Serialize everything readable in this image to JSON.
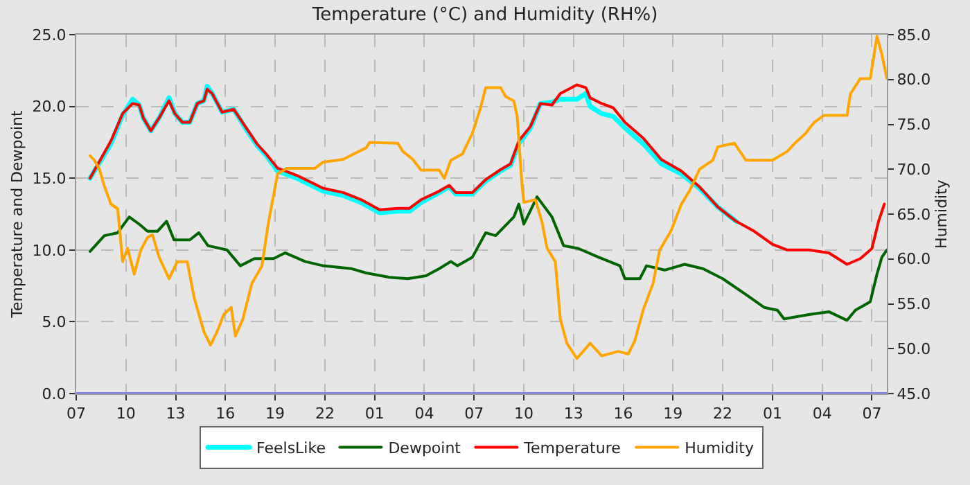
{
  "chart_data": {
    "type": "line",
    "title": "Temperature (°C) and Humidity (RH%)",
    "ylabel": "Temperature and Dewpoint",
    "y2label": "Humidity",
    "xlim": [
      "--01-01T07:00",
      "--01-03T07:54"
    ],
    "xticks": [
      {
        "value": "--01-01T07:00",
        "label": "07"
      },
      {
        "value": "--01-01T10:00",
        "label": "10"
      },
      {
        "value": "--01-01T13:00",
        "label": "13"
      },
      {
        "value": "--01-01T16:00",
        "label": "16"
      },
      {
        "value": "--01-01T19:00",
        "label": "19"
      },
      {
        "value": "--01-01T22:00",
        "label": "22"
      },
      {
        "value": "--01-02T01:00",
        "label": "01"
      },
      {
        "value": "--01-02T04:00",
        "label": "04"
      },
      {
        "value": "--01-02T07:00",
        "label": "07"
      },
      {
        "value": "--01-02T10:00",
        "label": "10"
      },
      {
        "value": "--01-02T13:00",
        "label": "13"
      },
      {
        "value": "--01-02T16:00",
        "label": "16"
      },
      {
        "value": "--01-02T19:00",
        "label": "19"
      },
      {
        "value": "--01-02T22:00",
        "label": "22"
      },
      {
        "value": "--01-03T01:00",
        "label": "01"
      },
      {
        "value": "--01-03T04:00",
        "label": "04"
      },
      {
        "value": "--01-03T07:00",
        "label": "07"
      }
    ],
    "ylim": [
      0,
      25
    ],
    "yticks": [
      {
        "value": 0,
        "label": "0.0"
      },
      {
        "value": 5,
        "label": "5.0"
      },
      {
        "value": 10,
        "label": "10.0"
      },
      {
        "value": 15,
        "label": "15.0"
      },
      {
        "value": 20,
        "label": "20.0"
      },
      {
        "value": 25,
        "label": "25.0"
      }
    ],
    "y2lim": [
      45,
      85
    ],
    "y2ticks": [
      {
        "value": 45,
        "label": "45.0"
      },
      {
        "value": 50,
        "label": "50.0"
      },
      {
        "value": 55,
        "label": "55.0"
      },
      {
        "value": 60,
        "label": "60.0"
      },
      {
        "value": 65,
        "label": "65.0"
      },
      {
        "value": 70,
        "label": "70.0"
      },
      {
        "value": 75,
        "label": "75.0"
      },
      {
        "value": 80,
        "label": "80.0"
      },
      {
        "value": 85,
        "label": "85.0"
      }
    ],
    "grid": true,
    "legend": "bottom",
    "line_style": "solid",
    "ref_lines": [
      {
        "axis": "y",
        "value": 0,
        "color": "#8080ff"
      }
    ],
    "x": [
      "--01-01T07:50",
      "--01-01T09:06",
      "--01-01T09:48",
      "--01-01T10:24",
      "--01-01T10:48",
      "--01-01T11:03",
      "--01-01T11:30",
      "--01-01T12:00",
      "--01-01T12:36",
      "--01-01T12:57",
      "--01-01T13:24",
      "--01-01T13:51",
      "--01-01T14:18",
      "--01-01T14:42",
      "--01-01T14:54",
      "--01-01T15:12",
      "--01-01T15:48",
      "--01-01T16:30",
      "--01-01T17:12",
      "--01-01T17:54",
      "--01-01T18:27",
      "--01-01T19:09",
      "--01-01T20:18",
      "--01-01T21:54",
      "--01-01T23:06",
      "--01-02T00:12",
      "--01-02T01:18",
      "--01-02T02:24",
      "--01-02T03:06",
      "--01-02T03:48",
      "--01-02T04:54",
      "--01-02T05:30",
      "--01-02T05:54",
      "--01-02T06:54",
      "--01-02T07:42",
      "--01-02T08:36",
      "--01-02T09:12",
      "--01-02T09:42",
      "--01-02T10:24",
      "--01-02T11:00",
      "--01-02T11:42",
      "--01-02T12:12",
      "--01-02T13:12",
      "--01-02T13:45",
      "--01-02T14:00",
      "--01-02T14:42",
      "--01-02T15:24",
      "--01-02T16:06",
      "--01-02T17:12",
      "--01-02T18:18",
      "--01-02T19:30",
      "--01-02T20:36",
      "--01-02T21:42",
      "--01-02T22:48",
      "--01-02T23:54",
      "--01-03T01:00",
      "--01-03T01:54",
      "--01-03T03:12",
      "--01-03T04:24",
      "--01-03T05:30",
      "--01-03T06:18",
      "--01-03T07:00",
      "--01-03T07:24",
      "--01-03T07:45"
    ],
    "series": [
      {
        "name": "FeelsLike",
        "color": "#00ffff",
        "values": [
          15.0,
          17.4,
          19.4,
          20.5,
          20.1,
          19.2,
          18.3,
          19.2,
          20.6,
          19.5,
          18.9,
          18.9,
          20.2,
          20.4,
          21.4,
          20.9,
          19.6,
          19.8,
          18.5,
          17.3,
          16.6,
          15.5,
          15.0,
          14.1,
          13.8,
          13.3,
          12.6,
          12.7,
          12.7,
          13.3,
          14.0,
          14.4,
          13.9,
          13.9,
          14.8,
          15.5,
          15.9,
          17.4,
          18.5,
          20.2,
          20.3,
          20.5,
          20.5,
          20.9,
          20.0,
          19.5,
          19.3,
          18.5,
          17.4,
          16.0,
          15.3,
          14.3,
          13.0,
          12.0,
          null,
          null,
          null,
          null,
          null,
          null,
          null,
          null,
          null,
          null
        ]
      },
      {
        "name": "Dewpoint",
        "color": "#006400",
        "x": [
          "--01-01T07:50",
          "--01-01T08:42",
          "--01-01T09:30",
          "--01-01T10:12",
          "--01-01T10:48",
          "--01-01T11:18",
          "--01-01T11:54",
          "--01-01T12:27",
          "--01-01T12:54",
          "--01-01T13:51",
          "--01-01T14:24",
          "--01-01T14:57",
          "--01-01T16:06",
          "--01-01T16:54",
          "--01-01T17:45",
          "--01-01T18:54",
          "--01-01T19:36",
          "--01-01T20:48",
          "--01-01T21:54",
          "--01-01T23:36",
          "--01-02T00:30",
          "--01-02T01:54",
          "--01-02T03:00",
          "--01-02T04:06",
          "--01-02T04:54",
          "--01-02T05:36",
          "--01-02T06:00",
          "--01-02T06:54",
          "--01-02T07:42",
          "--01-02T08:18",
          "--01-02T09:24",
          "--01-02T09:42",
          "--01-02T10:00",
          "--01-02T10:48",
          "--01-02T11:42",
          "--01-02T12:24",
          "--01-02T13:18",
          "--01-02T14:30",
          "--01-02T15:48",
          "--01-02T16:06",
          "--01-02T17:00",
          "--01-02T17:24",
          "--01-02T18:30",
          "--01-02T19:42",
          "--01-02T20:48",
          "--01-02T22:00",
          "--01-02T23:24",
          "--01-03T00:30",
          "--01-03T01:18",
          "--01-03T01:42",
          "--01-03T03:12",
          "--01-03T04:24",
          "--01-03T05:30",
          "--01-03T06:00",
          "--01-03T06:54",
          "--01-03T07:18",
          "--01-03T07:36",
          "--01-03T07:54"
        ],
        "values": [
          9.9,
          11.0,
          11.2,
          12.3,
          11.8,
          11.3,
          11.3,
          12.0,
          10.7,
          10.7,
          11.2,
          10.3,
          10.0,
          8.9,
          9.4,
          9.4,
          9.8,
          9.2,
          8.9,
          8.7,
          8.4,
          8.1,
          8.0,
          8.2,
          8.7,
          9.2,
          8.9,
          9.5,
          11.2,
          11.0,
          12.3,
          13.2,
          11.8,
          13.7,
          12.3,
          10.3,
          10.1,
          9.5,
          8.9,
          8.0,
          8.0,
          8.9,
          8.6,
          9.0,
          8.7,
          8.0,
          6.9,
          6.0,
          5.8,
          5.2,
          5.5,
          5.7,
          5.1,
          5.8,
          6.4,
          8.3,
          9.5,
          10.0
        ]
      },
      {
        "name": "Temperature",
        "color": "#ff0000",
        "values": [
          15.0,
          17.6,
          19.5,
          20.2,
          20.1,
          19.2,
          18.3,
          19.2,
          20.4,
          19.5,
          18.9,
          18.9,
          20.2,
          20.4,
          21.2,
          20.9,
          19.6,
          19.8,
          18.6,
          17.4,
          16.7,
          15.7,
          15.2,
          14.3,
          14.0,
          13.5,
          12.8,
          12.9,
          12.9,
          13.5,
          14.1,
          14.5,
          14.0,
          14.0,
          14.9,
          15.6,
          16.0,
          17.6,
          18.6,
          20.2,
          20.1,
          20.9,
          21.5,
          21.3,
          20.6,
          20.2,
          19.9,
          18.9,
          17.8,
          16.3,
          15.5,
          14.4,
          13.0,
          12.0,
          11.3,
          10.4,
          10.0,
          10.0,
          9.8,
          9.0,
          9.4,
          10.1,
          12.0,
          13.2
        ]
      },
      {
        "name": "Humidity",
        "color": "#ffa500",
        "axis": "y2",
        "x": [
          "--01-01T07:50",
          "--01-01T08:06",
          "--01-01T08:24",
          "--01-01T08:42",
          "--01-01T09:06",
          "--01-01T09:30",
          "--01-01T09:48",
          "--01-01T10:06",
          "--01-01T10:30",
          "--01-01T10:54",
          "--01-01T11:18",
          "--01-01T11:36",
          "--01-01T12:00",
          "--01-01T12:36",
          "--01-01T13:06",
          "--01-01T13:42",
          "--01-01T14:06",
          "--01-01T14:42",
          "--01-01T15:06",
          "--01-01T15:30",
          "--01-01T15:54",
          "--01-01T16:21",
          "--01-01T16:36",
          "--01-01T17:03",
          "--01-01T17:36",
          "--01-01T18:12",
          "--01-01T18:36",
          "--01-01T19:09",
          "--01-01T19:42",
          "--01-01T21:24",
          "--01-01T21:54",
          "--01-01T23:06",
          "--01-02T00:30",
          "--01-02T00:42",
          "--01-02T02:24",
          "--01-02T02:42",
          "--01-02T03:18",
          "--01-02T03:48",
          "--01-02T04:54",
          "--01-02T05:12",
          "--01-02T05:36",
          "--01-02T06:18",
          "--01-02T06:54",
          "--01-02T07:24",
          "--01-02T07:42",
          "--01-02T08:36",
          "--01-02T08:54",
          "--01-02T09:24",
          "--01-02T09:36",
          "--01-02T09:54",
          "--01-02T10:00",
          "--01-02T10:42",
          "--01-02T11:06",
          "--01-02T11:24",
          "--01-02T11:54",
          "--01-02T12:12",
          "--01-02T12:36",
          "--01-02T13:12",
          "--01-02T14:00",
          "--01-02T14:42",
          "--01-02T15:42",
          "--01-02T16:18",
          "--01-02T16:42",
          "--01-02T17:12",
          "--01-02T17:48",
          "--01-02T18:12",
          "--01-02T18:54",
          "--01-02T19:30",
          "--01-02T20:00",
          "--01-02T20:36",
          "--01-02T21:24",
          "--01-02T21:42",
          "--01-02T22:42",
          "--01-02T23:24",
          "--01-03T01:00",
          "--01-03T01:54",
          "--01-03T02:24",
          "--01-03T03:00",
          "--01-03T03:30",
          "--01-03T04:06",
          "--01-03T05:30",
          "--01-03T05:42",
          "--01-03T06:18",
          "--01-03T06:54",
          "--01-03T07:18",
          "--01-03T07:36",
          "--01-03T07:54"
        ],
        "values": [
          71.5,
          71.0,
          70.0,
          68.1,
          66.1,
          65.6,
          59.7,
          61.2,
          58.3,
          61.0,
          62.4,
          62.7,
          60.2,
          57.8,
          59.7,
          59.7,
          55.8,
          51.9,
          50.4,
          51.9,
          53.8,
          54.6,
          51.4,
          53.3,
          57.3,
          59.2,
          64.1,
          69.5,
          70.1,
          70.1,
          70.8,
          71.1,
          72.4,
          73.0,
          72.9,
          72.0,
          71.1,
          69.9,
          69.9,
          69.0,
          71.0,
          71.7,
          74.0,
          76.9,
          79.1,
          79.1,
          78.1,
          77.6,
          75.9,
          68.1,
          66.3,
          66.6,
          64.1,
          61.2,
          59.7,
          53.3,
          50.6,
          48.9,
          50.6,
          49.2,
          49.7,
          49.4,
          50.9,
          54.3,
          57.3,
          61.0,
          63.2,
          66.1,
          67.6,
          70.0,
          71.0,
          72.5,
          72.9,
          71.0,
          71.0,
          72.0,
          73.0,
          74.0,
          75.2,
          76.0,
          76.0,
          78.4,
          80.1,
          80.1,
          84.8,
          82.8,
          80.1
        ]
      }
    ]
  }
}
